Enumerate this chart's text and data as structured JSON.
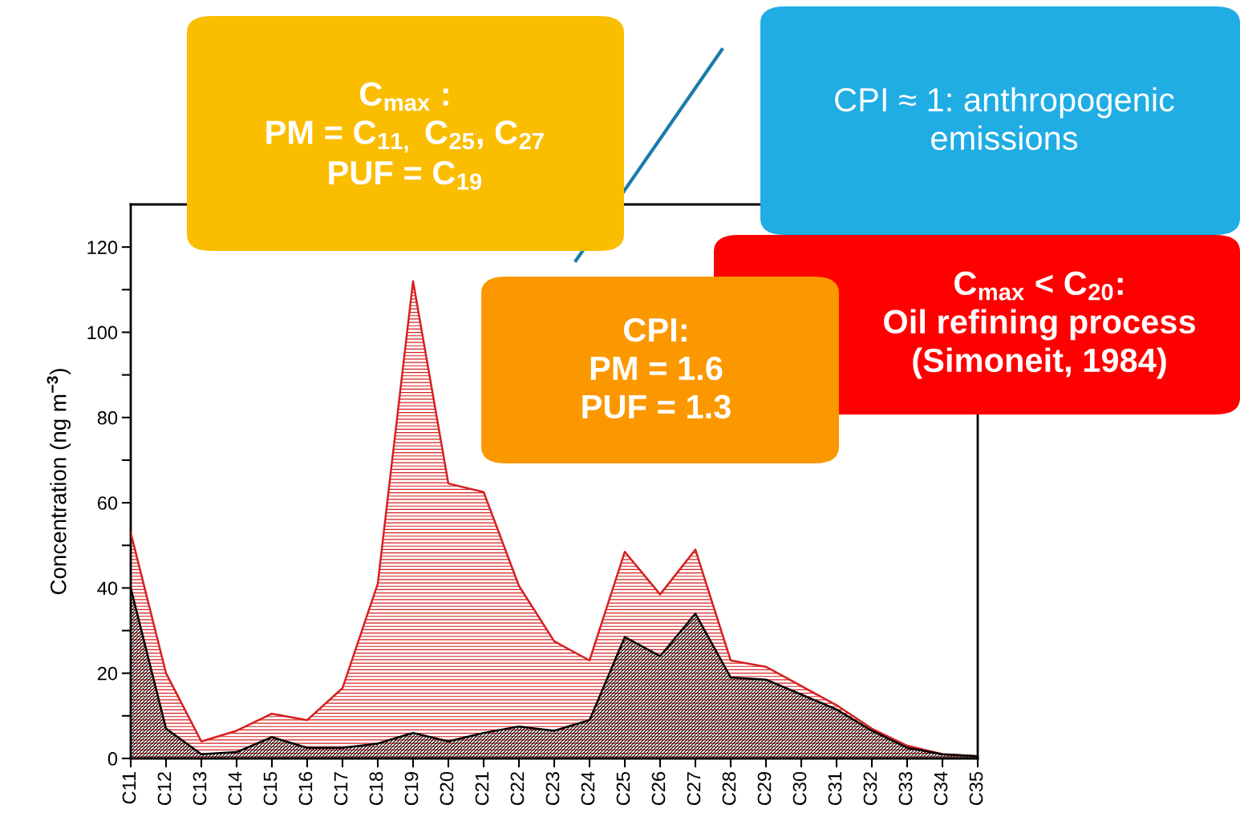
{
  "chart_data": {
    "type": "area",
    "ylabel": "Concentration (ng m$^{−3}$)",
    "categories": [
      "C11",
      "C12",
      "C13",
      "C14",
      "C15",
      "C16",
      "C17",
      "C18",
      "C19",
      "C20",
      "C21",
      "C22",
      "C23",
      "C24",
      "C25",
      "C26",
      "C27",
      "C28",
      "C29",
      "C30",
      "C31",
      "C32",
      "C33",
      "C34",
      "C35"
    ],
    "series": [
      {
        "color": "#d62020",
        "values": [
          53,
          20,
          4,
          6.5,
          10.5,
          9,
          16.5,
          41,
          112,
          64.5,
          62.5,
          40.5,
          27.5,
          23,
          48.5,
          38.5,
          49,
          23,
          21.5,
          17,
          12.5,
          7,
          3,
          1,
          0.5
        ]
      },
      {
        "color": "#000000",
        "values": [
          40,
          7,
          1,
          1.5,
          5,
          2.5,
          2.5,
          3.5,
          6,
          4,
          6,
          7.5,
          6.5,
          9,
          28.5,
          24,
          34,
          19,
          18.5,
          15,
          11.5,
          6.5,
          2.5,
          1,
          0.5
        ]
      }
    ],
    "ylim": [
      0,
      130
    ],
    "yticks": [
      0,
      {
        "value": 10,
        "label": null
      },
      20,
      {
        "value": 30,
        "label": null
      },
      40,
      {
        "value": 50,
        "label": null
      },
      60,
      {
        "value": 70,
        "label": null
      },
      80,
      {
        "value": 90,
        "label": null
      },
      100,
      {
        "value": 110,
        "label": null
      },
      120
    ],
    "grid": false,
    "annotations": [
      "C$_{max}$ :\nPM = C$_{11,}$ C$_{25}$, C$_{27}$\nPUF = C$_{19}$",
      "C$_{max}$ < C$_{20}$:\nOil refining process\n(Simoneit, 1984)",
      "CPI ≈ 1: anthropogenic\nemissions",
      "CPI:\nPM = 1.6\nPUF = 1.3"
    ]
  }
}
